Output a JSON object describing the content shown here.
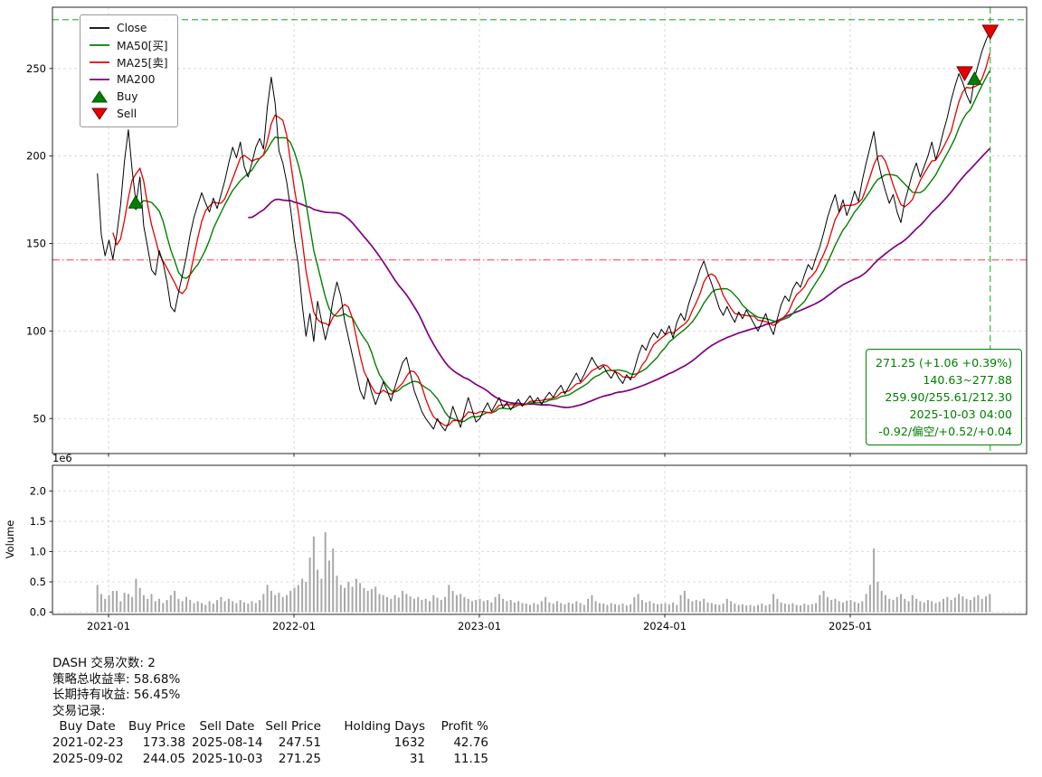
{
  "chart_data": {
    "type": "line+bar",
    "x": {
      "start": 2020.94,
      "step": 0.0208333,
      "lim": [
        2020.7,
        2025.95
      ],
      "ticks": [
        {
          "t": 2021.0,
          "label": "2021-01"
        },
        {
          "t": 2022.0,
          "label": "2022-01"
        },
        {
          "t": 2023.0,
          "label": "2023-01"
        },
        {
          "t": 2024.0,
          "label": "2024-01"
        },
        {
          "t": 2025.0,
          "label": "2025-01"
        }
      ]
    },
    "panels": [
      {
        "type": "line",
        "name": "price",
        "ylim": [
          30,
          285
        ],
        "yticks": [
          50,
          100,
          150,
          200,
          250
        ],
        "series": [
          {
            "name": "Close",
            "color": "#000000",
            "values": [
              190,
              155,
              143,
              152,
              141,
              155,
              172,
              197,
              215,
              192,
              173,
              188,
              160,
              148,
              135,
              132,
              146,
              139,
              128,
              114,
              111,
              122,
              132,
              142,
              155,
              165,
              172,
              179,
              173,
              168,
              176,
              170,
              178,
              186,
              196,
              205,
              199,
              208,
              194,
              188,
              196,
              205,
              210,
              204,
              228,
              245,
              230,
              203,
              196,
              185,
              170,
              152,
              138,
              115,
              97,
              110,
              94,
              117,
              106,
              95,
              104,
              118,
              128,
              120,
              106,
              96,
              86,
              76,
              66,
              61,
              73,
              65,
              58,
              64,
              71,
              66,
              60,
              68,
              75,
              82,
              85,
              76,
              66,
              60,
              54,
              50,
              47,
              44,
              50,
              46,
              43,
              48,
              57,
              51,
              45,
              54,
              62,
              55,
              48,
              50,
              55,
              59,
              54,
              58,
              62,
              56,
              59,
              55,
              58,
              61,
              57,
              60,
              63,
              59,
              62,
              58,
              62,
              65,
              62,
              66,
              69,
              64,
              68,
              72,
              76,
              71,
              75,
              80,
              85,
              81,
              78,
              80,
              76,
              73,
              77,
              73,
              70,
              75,
              72,
              78,
              86,
              92,
              89,
              95,
              99,
              96,
              101,
              98,
              103,
              96,
              105,
              110,
              106,
              115,
              122,
              128,
              135,
              140,
              133,
              127,
              120,
              113,
              109,
              114,
              109,
              105,
              111,
              107,
              112,
              108,
              104,
              100,
              105,
              110,
              103,
              98,
              107,
              115,
              120,
              117,
              124,
              128,
              125,
              132,
              138,
              135,
              142,
              148,
              156,
              165,
              172,
              178,
              168,
              175,
              166,
              172,
              180,
              174,
              186,
              196,
              205,
              214,
              198,
              188,
              180,
              173,
              178,
              168,
              162,
              174,
              182,
              190,
              196,
              188,
              194,
              200,
              208,
              198,
              205,
              214,
              222,
              232,
              240,
              247,
              242,
              235,
              230,
              244,
              252,
              260,
              266,
              271.25
            ]
          },
          {
            "name": "MA50[买]",
            "color": "#008000",
            "window_points": 10
          },
          {
            "name": "MA25[卖]",
            "color": "#e60000",
            "window_points": 5
          },
          {
            "name": "MA200",
            "color": "#800080",
            "window_points": 40
          }
        ],
        "hlines": [
          {
            "value": 277.88,
            "color": "#00a000",
            "style": "dashed"
          },
          {
            "value": 140.63,
            "color": "#ff3333",
            "style": "dashdot"
          }
        ],
        "vline": {
          "t": 2025.755,
          "color": "#00a000",
          "style": "dashed"
        }
      },
      {
        "type": "bar",
        "name": "volume",
        "ylabel": "Volume",
        "scale_label": "1e6",
        "ylim": [
          0,
          2.43
        ],
        "color": "#a8a8a8",
        "yticks": [
          {
            "v": 0.0,
            "label": "0.0"
          },
          {
            "v": 0.5,
            "label": "0.5"
          },
          {
            "v": 1.0,
            "label": "1.0"
          },
          {
            "v": 1.5,
            "label": "1.5"
          },
          {
            "v": 2.0,
            "label": "2.0"
          }
        ],
        "values": [
          0.45,
          0.3,
          0.22,
          0.28,
          0.35,
          0.35,
          0.18,
          0.32,
          0.3,
          0.25,
          0.55,
          0.4,
          0.28,
          0.22,
          0.3,
          0.18,
          0.22,
          0.15,
          0.2,
          0.28,
          0.35,
          0.22,
          0.18,
          0.25,
          0.2,
          0.15,
          0.18,
          0.15,
          0.12,
          0.18,
          0.14,
          0.2,
          0.25,
          0.18,
          0.22,
          0.18,
          0.15,
          0.2,
          0.16,
          0.14,
          0.18,
          0.15,
          0.2,
          0.3,
          0.45,
          0.35,
          0.28,
          0.32,
          0.25,
          0.28,
          0.35,
          0.4,
          0.45,
          0.55,
          0.5,
          0.9,
          1.25,
          0.7,
          0.55,
          1.32,
          0.85,
          1.05,
          0.6,
          0.45,
          0.4,
          0.5,
          0.42,
          0.55,
          0.48,
          0.4,
          0.35,
          0.38,
          0.42,
          0.3,
          0.28,
          0.25,
          0.22,
          0.28,
          0.24,
          0.35,
          0.3,
          0.26,
          0.22,
          0.25,
          0.2,
          0.22,
          0.18,
          0.28,
          0.24,
          0.2,
          0.25,
          0.45,
          0.35,
          0.28,
          0.3,
          0.25,
          0.22,
          0.18,
          0.2,
          0.22,
          0.18,
          0.2,
          0.16,
          0.25,
          0.3,
          0.22,
          0.18,
          0.2,
          0.16,
          0.18,
          0.15,
          0.14,
          0.12,
          0.15,
          0.13,
          0.18,
          0.25,
          0.16,
          0.14,
          0.18,
          0.15,
          0.13,
          0.16,
          0.14,
          0.18,
          0.15,
          0.12,
          0.22,
          0.28,
          0.18,
          0.15,
          0.14,
          0.12,
          0.15,
          0.13,
          0.12,
          0.14,
          0.11,
          0.13,
          0.25,
          0.3,
          0.2,
          0.16,
          0.18,
          0.15,
          0.13,
          0.14,
          0.15,
          0.13,
          0.16,
          0.12,
          0.28,
          0.35,
          0.22,
          0.18,
          0.2,
          0.18,
          0.22,
          0.16,
          0.15,
          0.13,
          0.12,
          0.14,
          0.22,
          0.18,
          0.14,
          0.12,
          0.13,
          0.11,
          0.12,
          0.1,
          0.12,
          0.14,
          0.11,
          0.13,
          0.3,
          0.22,
          0.16,
          0.14,
          0.13,
          0.15,
          0.12,
          0.11,
          0.14,
          0.12,
          0.13,
          0.15,
          0.28,
          0.35,
          0.25,
          0.2,
          0.22,
          0.18,
          0.16,
          0.19,
          0.2,
          0.17,
          0.15,
          0.18,
          0.3,
          0.45,
          1.05,
          0.5,
          0.35,
          0.28,
          0.22,
          0.2,
          0.25,
          0.3,
          0.22,
          0.18,
          0.28,
          0.22,
          0.18,
          0.16,
          0.2,
          0.18,
          0.15,
          0.17,
          0.22,
          0.25,
          0.2,
          0.24,
          0.3,
          0.26,
          0.22,
          0.2,
          0.25,
          0.28,
          0.22,
          0.26,
          0.3
        ]
      }
    ],
    "trades_markers": [
      {
        "type": "buy",
        "t": 2021.146,
        "price": 173.38
      },
      {
        "type": "sell",
        "t": 2025.617,
        "price": 247.51
      },
      {
        "type": "buy",
        "t": 2025.67,
        "price": 244.05
      },
      {
        "type": "sell",
        "t": 2025.755,
        "price": 271.25
      }
    ]
  },
  "legend": {
    "items": [
      {
        "label": "Close",
        "type": "line",
        "color": "#000000"
      },
      {
        "label": "MA50[买]",
        "type": "line",
        "color": "#008000"
      },
      {
        "label": "MA25[卖]",
        "type": "line",
        "color": "#e60000"
      },
      {
        "label": "MA200",
        "type": "line",
        "color": "#800080"
      },
      {
        "label": "Buy",
        "type": "marker-up",
        "color": "#008000"
      },
      {
        "label": "Sell",
        "type": "marker-down",
        "color": "#e60000"
      }
    ]
  },
  "annotation": {
    "color": "#008000",
    "lines": [
      "271.25 (+1.06 +0.39%)",
      "140.63~277.88",
      "259.90/255.61/212.30",
      "2025-10-03 04:00",
      "-0.92/偏空/+0.52/+0.04"
    ]
  },
  "summary": {
    "trade_count_line": "DASH 交易次数: 2",
    "strategy_return_line": "策略总收益率: 58.68%",
    "hold_return_line": "长期持有收益: 56.45%",
    "trades_label": "交易记录:",
    "table": {
      "columns": [
        "Buy Date",
        "Buy Price",
        "Sell Date",
        "Sell Price",
        "Holding Days",
        "Profit %"
      ],
      "rows": [
        [
          "2021-02-23",
          "173.38",
          "2025-08-14",
          "247.51",
          "1632",
          "42.76"
        ],
        [
          "2025-09-02",
          "244.05",
          "2025-10-03",
          "271.25",
          "31",
          "11.15"
        ]
      ]
    }
  }
}
